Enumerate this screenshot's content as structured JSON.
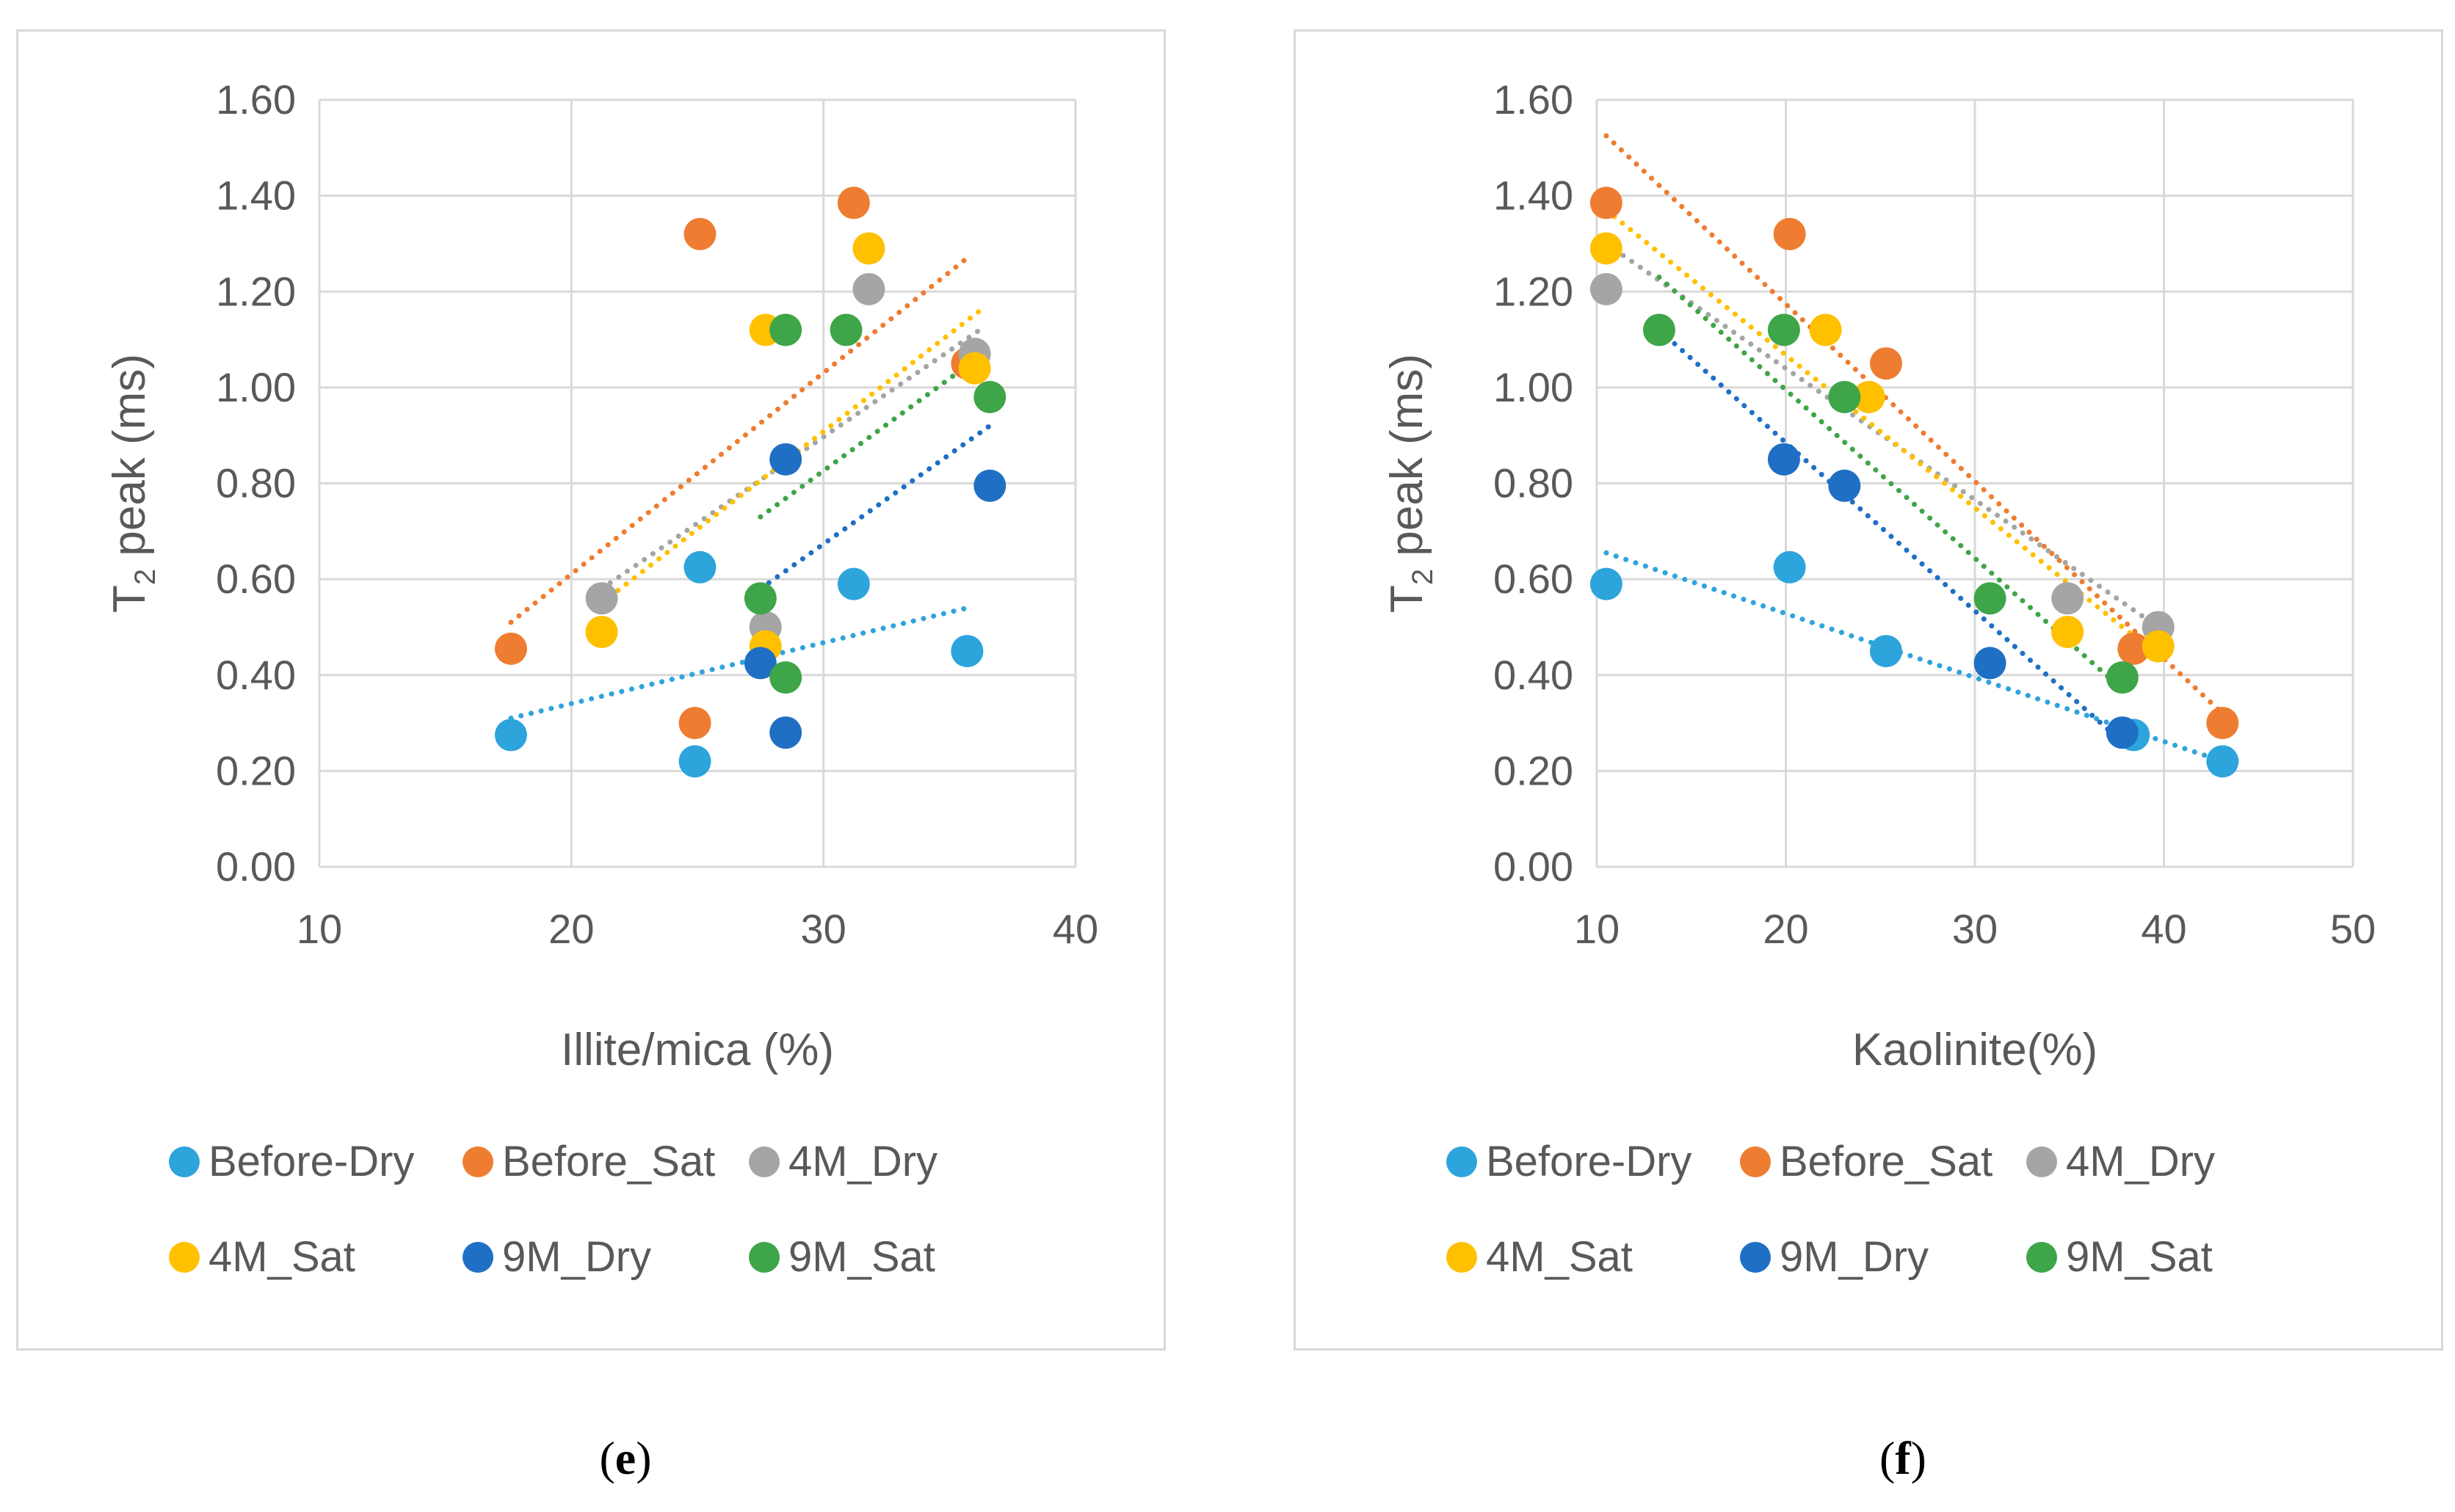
{
  "chart_data": [
    {
      "type": "scatter",
      "panel_label": "e",
      "xlabel": "Illite/mica (%)",
      "ylabel_main": "T",
      "ylabel_sub": "2",
      "ylabel_rest": " peak (ms)",
      "xlim": [
        10,
        40
      ],
      "ylim": [
        0,
        1.6
      ],
      "xticks": [
        10,
        20,
        30,
        40
      ],
      "yticks": [
        0,
        0.2,
        0.4,
        0.6,
        0.8,
        1.0,
        1.2,
        1.4,
        1.6
      ],
      "ytick_labels": [
        "0.00",
        "0.20",
        "0.40",
        "0.60",
        "0.80",
        "1.00",
        "1.20",
        "1.40",
        "1.60"
      ],
      "series": [
        {
          "name": "Before-Dry",
          "color": "#2ea4dc",
          "points": [
            [
              17.6,
              0.275
            ],
            [
              24.9,
              0.22
            ],
            [
              25.1,
              0.625
            ],
            [
              31.2,
              0.59
            ],
            [
              35.7,
              0.45
            ]
          ],
          "trend": [
            [
              17.6,
              0.31
            ],
            [
              35.7,
              0.54
            ]
          ]
        },
        {
          "name": "Before_Sat",
          "color": "#ee7d31",
          "points": [
            [
              17.6,
              0.455
            ],
            [
              24.9,
              0.3
            ],
            [
              25.1,
              1.32
            ],
            [
              31.2,
              1.385
            ],
            [
              35.7,
              1.05
            ]
          ],
          "trend": [
            [
              17.6,
              0.51
            ],
            [
              35.7,
              1.27
            ]
          ]
        },
        {
          "name": "4M_Dry",
          "color": "#a5a5a5",
          "points": [
            [
              21.2,
              0.56
            ],
            [
              27.7,
              0.5
            ],
            [
              31.8,
              1.205
            ],
            [
              36.0,
              1.07
            ]
          ],
          "trend": [
            [
              21.2,
              0.58
            ],
            [
              36.2,
              1.12
            ]
          ]
        },
        {
          "name": "4M_Sat",
          "color": "#ffc000",
          "points": [
            [
              21.2,
              0.49
            ],
            [
              27.7,
              0.46
            ],
            [
              27.7,
              1.12
            ],
            [
              31.8,
              1.29
            ],
            [
              36.0,
              1.04
            ]
          ],
          "trend": [
            [
              21.2,
              0.55
            ],
            [
              36.2,
              1.16
            ]
          ]
        },
        {
          "name": "9M_Dry",
          "color": "#1f6fc5",
          "points": [
            [
              27.5,
              0.425
            ],
            [
              28.5,
              0.28
            ],
            [
              28.5,
              0.85
            ],
            [
              36.6,
              0.795
            ]
          ],
          "trend": [
            [
              27.5,
              0.58
            ],
            [
              36.6,
              0.92
            ]
          ]
        },
        {
          "name": "9M_Sat",
          "color": "#3ea548",
          "points": [
            [
              27.5,
              0.56
            ],
            [
              28.5,
              0.395
            ],
            [
              28.5,
              1.12
            ],
            [
              30.9,
              1.12
            ],
            [
              36.6,
              0.98
            ]
          ],
          "trend": [
            [
              27.5,
              0.73
            ],
            [
              36.6,
              1.08
            ]
          ]
        }
      ]
    },
    {
      "type": "scatter",
      "panel_label": "f",
      "xlabel": "Kaolinite(%)",
      "ylabel_main": "T",
      "ylabel_sub": "2",
      "ylabel_rest": " peak (ms)",
      "xlim": [
        10,
        50
      ],
      "ylim": [
        0,
        1.6
      ],
      "xticks": [
        10,
        20,
        30,
        40,
        50
      ],
      "yticks": [
        0,
        0.2,
        0.4,
        0.6,
        0.8,
        1.0,
        1.2,
        1.4,
        1.6
      ],
      "ytick_labels": [
        "0.00",
        "0.20",
        "0.40",
        "0.60",
        "0.80",
        "1.00",
        "1.20",
        "1.40",
        "1.60"
      ],
      "series": [
        {
          "name": "Before-Dry",
          "color": "#2ea4dc",
          "points": [
            [
              10.5,
              0.59
            ],
            [
              20.2,
              0.625
            ],
            [
              25.3,
              0.45
            ],
            [
              38.4,
              0.275
            ],
            [
              43.1,
              0.22
            ]
          ],
          "trend": [
            [
              10.5,
              0.655
            ],
            [
              43.1,
              0.22
            ]
          ]
        },
        {
          "name": "Before_Sat",
          "color": "#ee7d31",
          "points": [
            [
              10.5,
              1.385
            ],
            [
              20.2,
              1.32
            ],
            [
              25.3,
              1.05
            ],
            [
              38.4,
              0.455
            ],
            [
              43.1,
              0.3
            ]
          ],
          "trend": [
            [
              10.5,
              1.525
            ],
            [
              43.1,
              0.32
            ]
          ]
        },
        {
          "name": "4M_Dry",
          "color": "#a5a5a5",
          "points": [
            [
              10.5,
              1.205
            ],
            [
              34.9,
              0.56
            ],
            [
              39.7,
              0.5
            ]
          ],
          "trend": [
            [
              10.5,
              1.3
            ],
            [
              39.7,
              0.5
            ]
          ]
        },
        {
          "name": "4M_Sat",
          "color": "#ffc000",
          "points": [
            [
              10.5,
              1.29
            ],
            [
              22.1,
              1.12
            ],
            [
              24.4,
              0.98
            ],
            [
              34.9,
              0.49
            ],
            [
              39.7,
              0.46
            ]
          ],
          "trend": [
            [
              10.5,
              1.37
            ],
            [
              39.7,
              0.44
            ]
          ]
        },
        {
          "name": "9M_Dry",
          "color": "#1f6fc5",
          "points": [
            [
              19.9,
              0.85
            ],
            [
              23.1,
              0.795
            ],
            [
              30.8,
              0.425
            ],
            [
              37.8,
              0.28
            ]
          ],
          "trend": [
            [
              13.3,
              1.12
            ],
            [
              37.8,
              0.26
            ]
          ]
        },
        {
          "name": "9M_Sat",
          "color": "#3ea548",
          "points": [
            [
              13.3,
              1.12
            ],
            [
              19.9,
              1.12
            ],
            [
              23.1,
              0.98
            ],
            [
              30.8,
              0.56
            ],
            [
              37.8,
              0.395
            ]
          ],
          "trend": [
            [
              13.3,
              1.23
            ],
            [
              37.8,
              0.37
            ]
          ]
        }
      ]
    }
  ],
  "legend": {
    "row1": [
      "Before-Dry",
      "Before_Sat",
      "4M_Dry"
    ],
    "row2": [
      "4M_Sat",
      "9M_Dry",
      "9M_Sat"
    ]
  },
  "captions": {
    "e": {
      "open": "(",
      "letter": "e",
      "close": ")"
    },
    "f": {
      "open": "(",
      "letter": "f",
      "close": ")"
    }
  }
}
